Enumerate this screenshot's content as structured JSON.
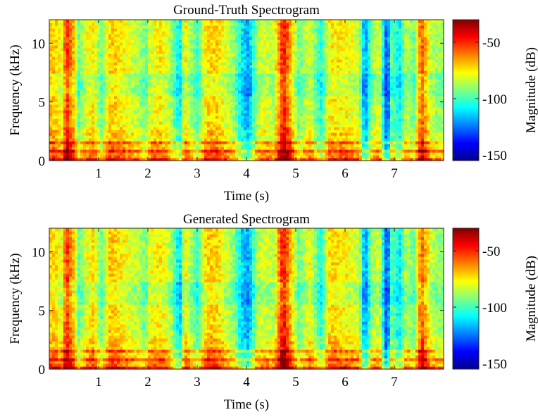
{
  "chart_data": [
    {
      "type": "heatmap",
      "title": "Ground-Truth Spectrogram",
      "xlabel": "Time (s)",
      "ylabel": "Frequency (kHz)",
      "xlim": [
        0,
        8
      ],
      "ylim": [
        0,
        12
      ],
      "xticks": [
        1,
        2,
        3,
        4,
        5,
        6,
        7
      ],
      "yticks": [
        0,
        5,
        10
      ],
      "colorbar": {
        "label": "Magnitude (dB)",
        "range": [
          -155,
          -30
        ],
        "ticks": [
          -50,
          -100,
          -150
        ],
        "colormap": "jet"
      },
      "z_profile": {
        "time_s": [
          0.1,
          0.25,
          0.35,
          0.5,
          0.6,
          0.75,
          0.9,
          1.05,
          1.25,
          1.45,
          1.6,
          1.8,
          1.95,
          2.05,
          2.25,
          2.45,
          2.65,
          2.75,
          2.85,
          3.0,
          3.2,
          3.4,
          3.55,
          3.75,
          3.9,
          4.05,
          4.2,
          4.35,
          4.55,
          4.75,
          4.85,
          5.05,
          5.3,
          5.5,
          5.7,
          5.9,
          6.1,
          6.3,
          6.4,
          6.55,
          6.7,
          6.85,
          6.95,
          7.1,
          7.25,
          7.4,
          7.55,
          7.75,
          7.95
        ],
        "level_dB": [
          -70,
          -80,
          -50,
          -70,
          -95,
          -80,
          -75,
          -95,
          -70,
          -75,
          -80,
          -85,
          -95,
          -80,
          -75,
          -85,
          -110,
          -75,
          -85,
          -100,
          -72,
          -72,
          -80,
          -90,
          -110,
          -120,
          -90,
          -80,
          -85,
          -45,
          -60,
          -95,
          -80,
          -105,
          -75,
          -75,
          -78,
          -85,
          -125,
          -90,
          -80,
          -135,
          -95,
          -110,
          -85,
          -95,
          -55,
          -85,
          -90
        ]
      }
    },
    {
      "type": "heatmap",
      "title": "Generated Spectrogram",
      "xlabel": "Time (s)",
      "ylabel": "Frequency (kHz)",
      "xlim": [
        0,
        8
      ],
      "ylim": [
        0,
        12
      ],
      "xticks": [
        1,
        2,
        3,
        4,
        5,
        6,
        7
      ],
      "yticks": [
        0,
        5,
        10
      ],
      "colorbar": {
        "label": "Magnitude (dB)",
        "range": [
          -155,
          -30
        ],
        "ticks": [
          -50,
          -100,
          -150
        ],
        "colormap": "jet"
      },
      "z_profile": {
        "time_s": [
          0.1,
          0.25,
          0.35,
          0.5,
          0.6,
          0.75,
          0.9,
          1.05,
          1.25,
          1.45,
          1.6,
          1.8,
          1.95,
          2.05,
          2.25,
          2.45,
          2.65,
          2.75,
          2.85,
          3.0,
          3.2,
          3.4,
          3.55,
          3.75,
          3.9,
          4.05,
          4.2,
          4.35,
          4.55,
          4.75,
          4.85,
          5.05,
          5.3,
          5.5,
          5.7,
          5.9,
          6.1,
          6.3,
          6.4,
          6.55,
          6.7,
          6.85,
          6.95,
          7.1,
          7.25,
          7.4,
          7.55,
          7.75,
          7.95
        ],
        "level_dB": [
          -72,
          -80,
          -50,
          -72,
          -95,
          -80,
          -72,
          -95,
          -68,
          -75,
          -80,
          -85,
          -95,
          -78,
          -75,
          -85,
          -115,
          -75,
          -85,
          -100,
          -70,
          -72,
          -80,
          -92,
          -112,
          -120,
          -88,
          -82,
          -85,
          -45,
          -60,
          -95,
          -78,
          -105,
          -72,
          -75,
          -78,
          -85,
          -125,
          -88,
          -82,
          -135,
          -95,
          -110,
          -85,
          -95,
          -55,
          -85,
          -90
        ]
      }
    }
  ]
}
